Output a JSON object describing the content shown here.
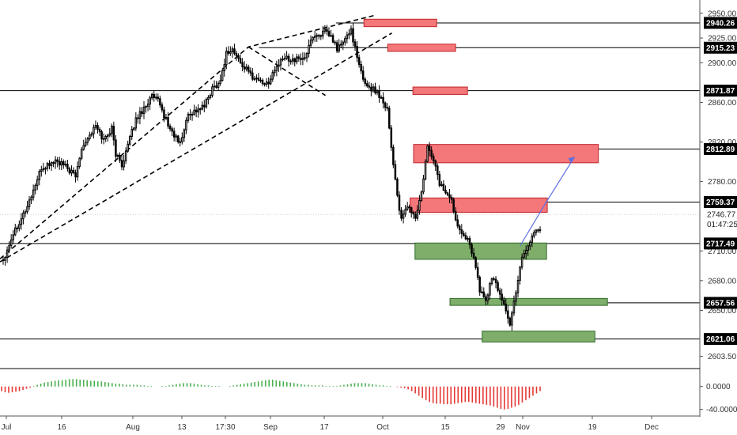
{
  "chart_data": {
    "type": "candlestick",
    "price_axis": {
      "range": [
        2592,
        2957
      ],
      "ticks": [
        "2950.00",
        "2925.00",
        "2900.00",
        "2860.00",
        "2820.00",
        "2780.00",
        "2710.00",
        "2680.00",
        "2650.00",
        "2603.50"
      ],
      "price_badges": [
        {
          "value": 2940.26,
          "label": "2940.26"
        },
        {
          "value": 2915.23,
          "label": "2915.23"
        },
        {
          "value": 2871.87,
          "label": "2871.87"
        },
        {
          "value": 2812.89,
          "label": "2812.89"
        },
        {
          "value": 2759.37,
          "label": "2759.37"
        },
        {
          "value": 2717.49,
          "label": "2717.49"
        },
        {
          "value": 2657.56,
          "label": "2657.56"
        },
        {
          "value": 2621.06,
          "label": "2621.06"
        }
      ],
      "current_price": {
        "value": 2746.77,
        "label": "2746.77",
        "countdown": "01:47:25"
      }
    },
    "time_axis": {
      "labels": [
        "Jul",
        "16",
        "Aug",
        "13",
        "17:30",
        "Sep",
        "17",
        "Oct",
        "15",
        "29",
        "Nov",
        "19",
        "Dec"
      ]
    },
    "candles": {
      "open": 2701.0,
      "close": 2731.5,
      "anchors": [
        [
          0,
          2701
        ],
        [
          5,
          2728
        ],
        [
          12,
          2755
        ],
        [
          19,
          2793
        ],
        [
          26,
          2801
        ],
        [
          31,
          2795
        ],
        [
          36,
          2785
        ],
        [
          39,
          2815
        ],
        [
          46,
          2836
        ],
        [
          50,
          2822
        ],
        [
          54,
          2834
        ],
        [
          56,
          2808
        ],
        [
          59,
          2797
        ],
        [
          66,
          2843
        ],
        [
          74,
          2866
        ],
        [
          77,
          2861
        ],
        [
          83,
          2833
        ],
        [
          88,
          2818
        ],
        [
          92,
          2848
        ],
        [
          100,
          2856
        ],
        [
          104,
          2874
        ],
        [
          108,
          2882
        ],
        [
          111,
          2910
        ],
        [
          114,
          2913
        ],
        [
          118,
          2900
        ],
        [
          124,
          2886
        ],
        [
          128,
          2882
        ],
        [
          131,
          2878
        ],
        [
          136,
          2896
        ],
        [
          140,
          2905
        ],
        [
          146,
          2903
        ],
        [
          151,
          2907
        ],
        [
          153,
          2925
        ],
        [
          160,
          2931
        ],
        [
          163,
          2926
        ],
        [
          166,
          2914
        ],
        [
          170,
          2923
        ],
        [
          173,
          2934
        ],
        [
          176,
          2904
        ],
        [
          179,
          2883
        ],
        [
          182,
          2875
        ],
        [
          186,
          2871
        ],
        [
          191,
          2854
        ],
        [
          193,
          2815
        ],
        [
          196,
          2766
        ],
        [
          198,
          2740
        ],
        [
          201,
          2756
        ],
        [
          205,
          2743
        ],
        [
          208,
          2768
        ],
        [
          211,
          2814
        ],
        [
          214,
          2803
        ],
        [
          217,
          2778
        ],
        [
          220,
          2770
        ],
        [
          223,
          2760
        ],
        [
          226,
          2736
        ],
        [
          230,
          2725
        ],
        [
          234,
          2705
        ],
        [
          237,
          2670
        ],
        [
          240,
          2660
        ],
        [
          243,
          2683
        ],
        [
          246,
          2672
        ],
        [
          250,
          2651
        ],
        [
          252,
          2634
        ],
        [
          255,
          2670
        ],
        [
          258,
          2705
        ],
        [
          261,
          2715
        ],
        [
          264,
          2730
        ],
        [
          267,
          2731.5
        ]
      ]
    },
    "oscillator": {
      "ticks": [
        "0.0000",
        "-40.0000"
      ],
      "range": [
        -46,
        30
      ],
      "values": [
        -8,
        -10,
        -11,
        -10,
        -9,
        -8,
        -6,
        -4,
        -2,
        1,
        3,
        5,
        7,
        8,
        9,
        10,
        11,
        11,
        12,
        13,
        13,
        13,
        12,
        12,
        11,
        10,
        10,
        9,
        9,
        8,
        7,
        6,
        5,
        5,
        4,
        3,
        3,
        3,
        3,
        2,
        2,
        1,
        1,
        0,
        0,
        1,
        1,
        2,
        3,
        4,
        5,
        6,
        6,
        6,
        5,
        4,
        3,
        2,
        2,
        1,
        1,
        1,
        0,
        0,
        1,
        2,
        3,
        4,
        5,
        6,
        7,
        8,
        9,
        10,
        11,
        12,
        12,
        11,
        10,
        9,
        8,
        7,
        6,
        5,
        4,
        3,
        3,
        2,
        2,
        2,
        2,
        1,
        1,
        1,
        1,
        2,
        3,
        4,
        5,
        6,
        6,
        6,
        6,
        5,
        4,
        3,
        2,
        2,
        1,
        1,
        0,
        -1,
        -2,
        -3,
        -5,
        -8,
        -12,
        -16,
        -20,
        -24,
        -27,
        -29,
        -30,
        -30,
        -31,
        -31,
        -31,
        -30,
        -29,
        -28,
        -27,
        -27,
        -28,
        -29,
        -30,
        -31,
        -32,
        -33,
        -35,
        -37,
        -39,
        -40,
        -39,
        -37,
        -35,
        -32,
        -28,
        -24,
        -20,
        -16,
        -12,
        -8
      ]
    },
    "zones": [
      {
        "kind": "supply",
        "top": 2944.0,
        "bottom": 2936.5,
        "start": 0.52,
        "end": 0.624
      },
      {
        "kind": "supply",
        "top": 2918.8,
        "bottom": 2911.5,
        "start": 0.554,
        "end": 0.651
      },
      {
        "kind": "supply",
        "top": 2875.5,
        "bottom": 2868.0,
        "start": 0.59,
        "end": 0.668
      },
      {
        "kind": "supply",
        "top": 2817.5,
        "bottom": 2799.0,
        "start": 0.591,
        "end": 0.855
      },
      {
        "kind": "supply",
        "top": 2763.5,
        "bottom": 2749.0,
        "start": 0.586,
        "end": 0.782
      },
      {
        "kind": "demand",
        "top": 2718.0,
        "bottom": 2701.5,
        "start": 0.593,
        "end": 0.781
      },
      {
        "kind": "demand",
        "top": 2662.0,
        "bottom": 2655.0,
        "start": 0.643,
        "end": 0.868
      },
      {
        "kind": "demand",
        "top": 2629.0,
        "bottom": 2618.0,
        "start": 0.689,
        "end": 0.85
      }
    ],
    "projection": {
      "from": [
        0.743,
        2715
      ],
      "via": [
        0.782,
        2761
      ],
      "to": [
        0.821,
        2805
      ]
    },
    "trendlines": [
      [
        [
          0.0,
          2702.0
        ],
        [
          0.355,
          2916.0
        ],
        [
          0.536,
          2948.0
        ]
      ],
      [
        [
          0.0,
          2699.0
        ],
        [
          0.56,
          2930.0
        ]
      ],
      [
        [
          0.355,
          2916.0
        ],
        [
          0.465,
          2867.0
        ]
      ]
    ],
    "colors": {
      "bullish": "#000000",
      "bearish": "#000000",
      "supply_fill": "#f4777a",
      "supply_border": "#c0262c",
      "demand_fill": "#7fae6a",
      "demand_border": "#2f6b2a",
      "osc_up": "#4caf50",
      "osc_down": "#e53935",
      "badge_bg": "#000000",
      "projection": "#5b6ee1",
      "grid": "#000000"
    }
  }
}
